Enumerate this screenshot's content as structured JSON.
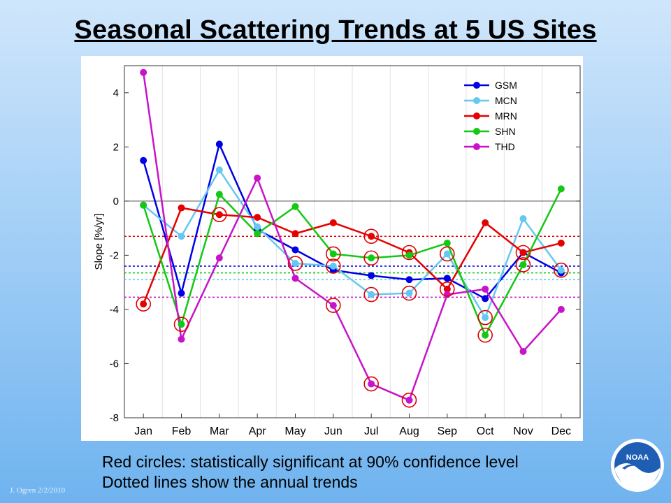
{
  "slide": {
    "title": "Seasonal Scattering Trends at 5 US Sites",
    "caption_line1": "Red circles: statistically significant at 90% confidence level",
    "caption_line2": "Dotted lines show the annual trends",
    "author": "J. Ogren  2/2/2010",
    "logo_text": "NOAA"
  },
  "chart_data": {
    "type": "line",
    "title": "",
    "xlabel": "",
    "ylabel": "Slope [%/yr]",
    "ylim": [
      -8,
      5
    ],
    "yticks": [
      -8,
      -6,
      -4,
      -2,
      0,
      2,
      4
    ],
    "categories": [
      "Jan",
      "Feb",
      "Mar",
      "Apr",
      "May",
      "Jun",
      "Jul",
      "Aug",
      "Sep",
      "Oct",
      "Nov",
      "Dec"
    ],
    "grid": "vertical",
    "legend_position": "top-right",
    "series": [
      {
        "name": "GSM",
        "color": "#0000e6",
        "values": [
          1.5,
          -3.4,
          2.1,
          -1.05,
          -1.8,
          -2.55,
          -2.75,
          -2.9,
          -2.85,
          -3.6,
          -1.9,
          -2.65
        ],
        "significant": [
          false,
          false,
          false,
          false,
          false,
          false,
          false,
          false,
          false,
          false,
          false,
          false
        ],
        "annual_trend": -2.4
      },
      {
        "name": "MCN",
        "color": "#66c8f0",
        "values": [
          -0.15,
          -1.3,
          1.15,
          -0.95,
          -2.3,
          -2.4,
          -3.45,
          -3.4,
          -1.95,
          -4.3,
          -0.65,
          -2.55
        ],
        "significant": [
          false,
          false,
          false,
          false,
          true,
          true,
          true,
          true,
          true,
          true,
          false,
          true
        ],
        "annual_trend": -2.9
      },
      {
        "name": "MRN",
        "color": "#e60000",
        "values": [
          -3.8,
          -0.25,
          -0.5,
          -0.6,
          -1.2,
          -0.8,
          -1.3,
          -1.9,
          -3.25,
          -0.8,
          -1.9,
          -1.55
        ],
        "significant": [
          true,
          false,
          true,
          false,
          false,
          false,
          true,
          true,
          true,
          false,
          true,
          false
        ],
        "annual_trend": -1.3
      },
      {
        "name": "SHN",
        "color": "#14c814",
        "values": [
          -0.15,
          -4.55,
          0.25,
          -1.2,
          -0.2,
          -1.95,
          -2.1,
          -2.0,
          -1.55,
          -4.95,
          -2.35,
          0.45
        ],
        "significant": [
          false,
          true,
          false,
          false,
          false,
          true,
          true,
          false,
          false,
          true,
          true,
          false
        ],
        "annual_trend": -2.65
      },
      {
        "name": "THD",
        "color": "#c814c8",
        "values": [
          4.75,
          -5.1,
          -2.1,
          0.85,
          -2.85,
          -3.85,
          -6.75,
          -7.35,
          -3.45,
          -3.25,
          -5.55,
          -4.0
        ],
        "significant": [
          false,
          false,
          false,
          false,
          false,
          true,
          true,
          true,
          false,
          false,
          false,
          false
        ],
        "annual_trend": -3.55
      }
    ]
  }
}
